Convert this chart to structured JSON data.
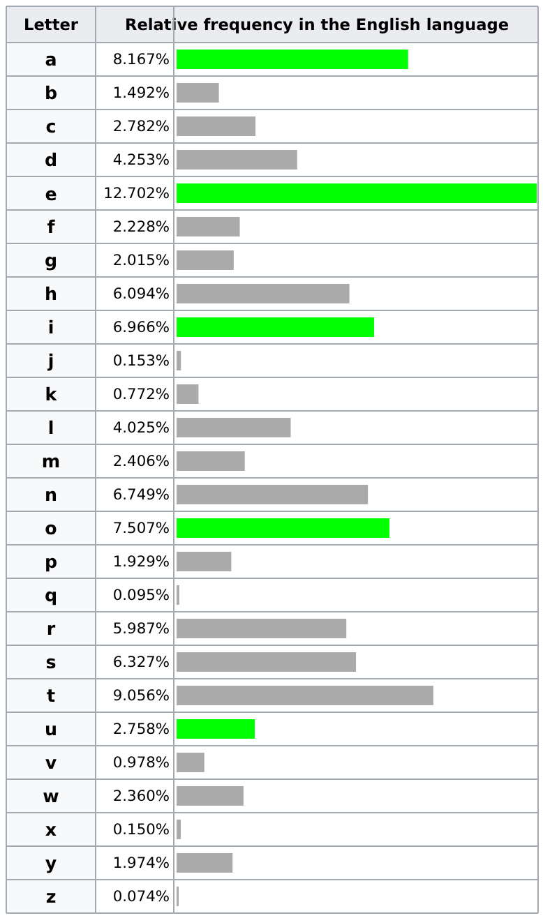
{
  "chart_data": {
    "type": "bar",
    "orientation": "horizontal",
    "title": "Relative frequency in the English language",
    "ylabel": "Letter",
    "categories": [
      "a",
      "b",
      "c",
      "d",
      "e",
      "f",
      "g",
      "h",
      "i",
      "j",
      "k",
      "l",
      "m",
      "n",
      "o",
      "p",
      "q",
      "r",
      "s",
      "t",
      "u",
      "v",
      "w",
      "x",
      "y",
      "z"
    ],
    "values": [
      8.167,
      1.492,
      2.782,
      4.253,
      12.702,
      2.228,
      2.015,
      6.094,
      6.966,
      0.153,
      0.772,
      4.025,
      2.406,
      6.749,
      7.507,
      1.929,
      0.095,
      5.987,
      6.327,
      9.056,
      2.758,
      0.978,
      2.36,
      0.15,
      1.974,
      0.074
    ],
    "value_labels": [
      "8.167%",
      "1.492%",
      "2.782%",
      "4.253%",
      "12.702%",
      "2.228%",
      "2.015%",
      "6.094%",
      "6.966%",
      "0.153%",
      "0.772%",
      "4.025%",
      "2.406%",
      "6.749%",
      "7.507%",
      "1.929%",
      "0.095%",
      "5.987%",
      "6.327%",
      "9.056%",
      "2.758%",
      "0.978%",
      "2.360%",
      "0.150%",
      "1.974%",
      "0.074%"
    ],
    "colors": [
      "#00ff00",
      "#aaaaaa",
      "#aaaaaa",
      "#aaaaaa",
      "#00ff00",
      "#aaaaaa",
      "#aaaaaa",
      "#aaaaaa",
      "#00ff00",
      "#aaaaaa",
      "#aaaaaa",
      "#aaaaaa",
      "#aaaaaa",
      "#aaaaaa",
      "#00ff00",
      "#aaaaaa",
      "#aaaaaa",
      "#aaaaaa",
      "#aaaaaa",
      "#aaaaaa",
      "#00ff00",
      "#aaaaaa",
      "#aaaaaa",
      "#aaaaaa",
      "#aaaaaa",
      "#aaaaaa"
    ],
    "xlim": [
      0,
      12.702
    ]
  }
}
